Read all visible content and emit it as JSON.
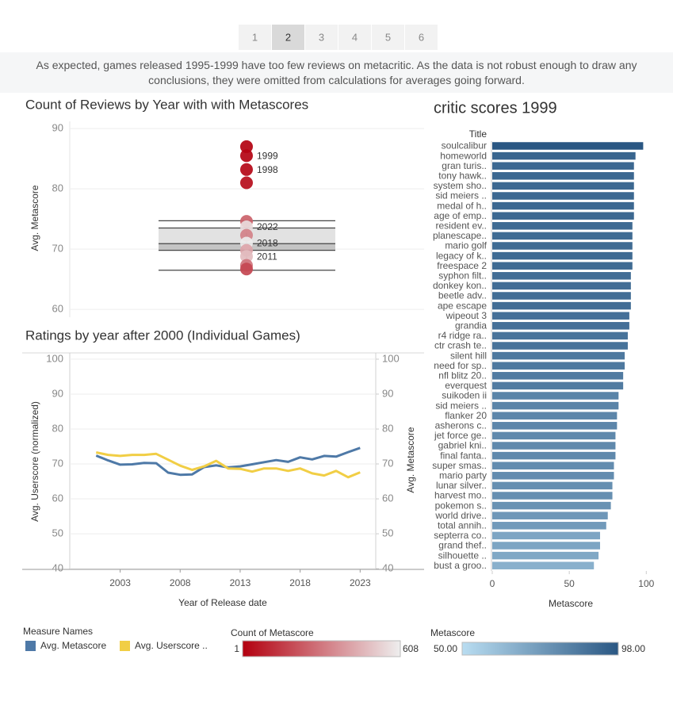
{
  "tabs": [
    "1",
    "2",
    "3",
    "4",
    "5",
    "6"
  ],
  "selected_tab": 1,
  "caption": "As expected, games released 1995-1999 have too few reviews on metacritic. As the data is not robust enough to draw any conclusions, they were omitted from calculations for averages going forward.",
  "chart_data": [
    {
      "type": "strip",
      "title": "Count of Reviews by Year with with Metascores",
      "ylabel": "Avg. Metascore",
      "ylim": [
        58.7,
        91.2
      ],
      "yticks": [
        60,
        70,
        80,
        90
      ],
      "grid": true,
      "values": [
        87.0,
        85.5,
        83.2,
        81.0,
        74.6,
        73.7,
        72.3,
        71.0,
        69.8,
        68.8,
        67.3,
        66.7
      ],
      "counts": [
        4,
        8,
        20,
        35,
        250,
        560,
        330,
        600,
        420,
        480,
        300,
        180
      ],
      "labels": [
        null,
        "1999",
        "1998",
        null,
        null,
        "2022",
        null,
        "2018",
        null,
        "2011",
        null,
        null
      ],
      "box": {
        "whisker_low": 66.5,
        "q1": 69.8,
        "median": 70.9,
        "q3": 73.5,
        "whisker_high": 74.7
      },
      "legend": {
        "title": "Count of Metascore",
        "domain": [
          1,
          608
        ],
        "colors": [
          "#b3000f",
          "#eeeeee"
        ]
      }
    },
    {
      "type": "line",
      "title": "Ratings by year after 2000 (Individual Games)",
      "xlabel": "Year of Release date",
      "ylabel": "Avg. Userscore (normalized)",
      "y2label": "Avg. Metascore",
      "x": [
        2001,
        2002,
        2003,
        2004,
        2005,
        2006,
        2007,
        2008,
        2009,
        2010,
        2011,
        2012,
        2013,
        2014,
        2015,
        2016,
        2017,
        2018,
        2019,
        2020,
        2021,
        2022,
        2023
      ],
      "xlim": [
        1998.8,
        2024.3
      ],
      "xticks": [
        2003,
        2008,
        2013,
        2018,
        2023
      ],
      "ylim": [
        39.8,
        101.8
      ],
      "yticks": [
        40,
        50,
        60,
        70,
        80,
        90,
        100
      ],
      "y2lim": [
        39.8,
        101.8
      ],
      "y2ticks": [
        40,
        50,
        60,
        70,
        80,
        90,
        100
      ],
      "grid": true,
      "legend_title": "Measure Names",
      "series": [
        {
          "name": "Avg. Metascore",
          "color": "#4e79a7",
          "axis": "y2",
          "values": [
            72.4,
            71.0,
            69.8,
            69.9,
            70.3,
            70.2,
            67.5,
            66.9,
            67.0,
            69.1,
            69.6,
            69.0,
            69.3,
            69.9,
            70.5,
            71.1,
            70.6,
            71.9,
            71.3,
            72.3,
            72.1,
            73.4,
            74.6
          ]
        },
        {
          "name": "Avg. Userscore ..",
          "color": "#f1ce45",
          "values": [
            73.3,
            72.6,
            72.3,
            72.6,
            72.6,
            72.9,
            71.2,
            69.5,
            68.3,
            69.3,
            70.9,
            68.7,
            68.6,
            67.8,
            68.7,
            68.7,
            68.0,
            68.7,
            67.3,
            66.7,
            68.0,
            66.2,
            67.6
          ]
        }
      ]
    },
    {
      "type": "hbar",
      "title": "critic scores 1999",
      "row_header": "Title",
      "xlabel": "Metascore",
      "xlim": [
        0,
        105
      ],
      "xticks": [
        0,
        50,
        100
      ],
      "categories": [
        "soulcalibur",
        "homeworld",
        "gran turis..",
        "tony hawk..",
        "system sho..",
        "sid meiers ..",
        "medal of h..",
        "age of emp..",
        "resident ev..",
        "planescape..",
        "mario golf",
        "legacy of k..",
        "freespace 2",
        "syphon filt..",
        "donkey kon..",
        "beetle adv..",
        "ape escape",
        "wipeout 3",
        "grandia",
        "r4 ridge ra..",
        "ctr crash te..",
        "silent hill",
        "need for sp..",
        "nfl blitz 20..",
        "everquest",
        "suikoden ii",
        "sid meiers ..",
        "flanker 20",
        "asherons c..",
        "jet force ge..",
        "gabriel kni..",
        "final fanta..",
        "super smas..",
        "mario party",
        "lunar silver..",
        "harvest mo..",
        "pokemon s..",
        "world drive..",
        "total annih..",
        "septerra co..",
        "grand thef..",
        "silhouette ..",
        "bust a groo.."
      ],
      "values": [
        98,
        93,
        92,
        92,
        92,
        92,
        92,
        92,
        91,
        91,
        91,
        91,
        91,
        90,
        90,
        90,
        90,
        89,
        89,
        88,
        88,
        86,
        86,
        85,
        85,
        82,
        82,
        81,
        81,
        80,
        80,
        80,
        79,
        79,
        78,
        78,
        77,
        75,
        74,
        70,
        70,
        69,
        66
      ],
      "legend": {
        "title": "Metascore",
        "domain": [
          {
            "value": 50,
            "label": "50.00"
          },
          {
            "value": 98,
            "label": "98.00"
          }
        ],
        "colors": [
          "#b9ddf1",
          "#2a5783"
        ]
      }
    }
  ]
}
